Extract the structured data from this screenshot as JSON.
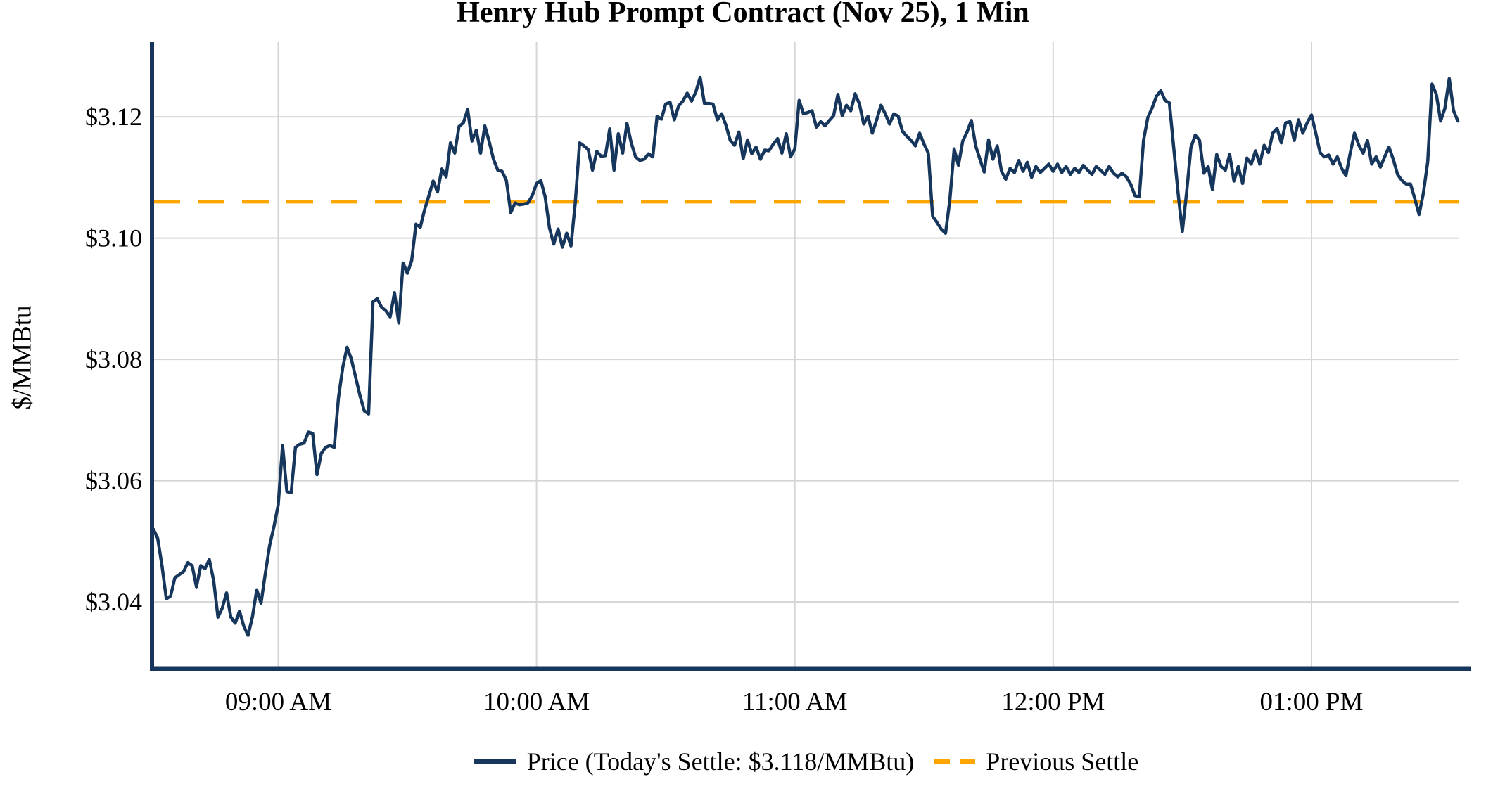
{
  "title": "Henry Hub Prompt Contract (Nov 25), 1 Min",
  "y_axis": {
    "label": "$/MMBtu",
    "ticks": [
      {
        "value": 3.04,
        "label": "$3.04"
      },
      {
        "value": 3.06,
        "label": "$3.06"
      },
      {
        "value": 3.08,
        "label": "$3.08"
      },
      {
        "value": 3.1,
        "label": "$3.10"
      },
      {
        "value": 3.12,
        "label": "$3.12"
      }
    ]
  },
  "x_axis": {
    "ticks": [
      {
        "minute": 29,
        "label": "09:00 AM"
      },
      {
        "minute": 89,
        "label": "10:00 AM"
      },
      {
        "minute": 149,
        "label": "11:00 AM"
      },
      {
        "minute": 209,
        "label": "12:00 PM"
      },
      {
        "minute": 269,
        "label": "01:00 PM"
      }
    ]
  },
  "legend": {
    "price_label": "Price (Today's Settle: $3.118/MMBtu)",
    "previous_settle_label": "Previous Settle"
  },
  "colors": {
    "price_line": "#16365C",
    "previous_settle": "#FFA500",
    "gridline": "#D5D5D5",
    "axis": "#16365C",
    "text": "#000000",
    "background": "#FFFFFF"
  },
  "chart_data": {
    "type": "line",
    "title": "Henry Hub Prompt Contract (Nov 25), 1 Min",
    "xlabel": "",
    "ylabel": "$/MMBtu",
    "ylim": [
      3.029,
      3.1323
    ],
    "grid": true,
    "legend_position": "bottom",
    "start_time": "08:31 AM",
    "end_time": "01:34 PM",
    "interval_minutes": 1,
    "previous_settle": 3.106,
    "todays_settle": 3.118,
    "series": [
      {
        "name": "Price",
        "style": "solid",
        "values": [
          3.052,
          3.0505,
          3.046,
          3.0405,
          3.041,
          3.044,
          3.0445,
          3.045,
          3.0465,
          3.046,
          3.0425,
          3.046,
          3.0455,
          3.047,
          3.0435,
          3.0375,
          3.039,
          3.0415,
          3.0375,
          3.0365,
          3.0385,
          3.036,
          3.0345,
          3.0375,
          3.042,
          3.0398,
          3.0447,
          3.0493,
          3.0524,
          3.056,
          3.0658,
          3.0582,
          3.058,
          3.0655,
          3.066,
          3.0662,
          3.068,
          3.0678,
          3.061,
          3.0645,
          3.0655,
          3.0658,
          3.0655,
          3.0737,
          3.0787,
          3.082,
          3.08,
          3.077,
          3.074,
          3.0715,
          3.071,
          3.0895,
          3.09,
          3.0886,
          3.088,
          3.087,
          3.091,
          3.086,
          3.0959,
          3.0942,
          3.0963,
          3.1023,
          3.1018,
          3.1047,
          3.107,
          3.1094,
          3.1076,
          3.1114,
          3.1101,
          3.1157,
          3.114,
          3.1184,
          3.119,
          3.1212,
          3.116,
          3.1178,
          3.114,
          3.1185,
          3.1159,
          3.113,
          3.1112,
          3.111,
          3.1095,
          3.1042,
          3.1058,
          3.1055,
          3.1056,
          3.1058,
          3.107,
          3.109,
          3.1095,
          3.1068,
          3.1017,
          3.099,
          3.1015,
          3.0985,
          3.1008,
          3.0987,
          3.1058,
          3.1157,
          3.1152,
          3.1146,
          3.1112,
          3.1143,
          3.1135,
          3.1136,
          3.118,
          3.1112,
          3.1172,
          3.114,
          3.1189,
          3.1157,
          3.1134,
          3.1128,
          3.113,
          3.1139,
          3.1134,
          3.1201,
          3.1196,
          3.1221,
          3.1224,
          3.1195,
          3.1218,
          3.1226,
          3.1239,
          3.1226,
          3.1241,
          3.1265,
          3.1222,
          3.1222,
          3.1221,
          3.1195,
          3.1205,
          3.1186,
          3.1161,
          3.1153,
          3.1175,
          3.1131,
          3.1162,
          3.1139,
          3.115,
          3.113,
          3.1145,
          3.1144,
          3.1155,
          3.1164,
          3.114,
          3.1172,
          3.1134,
          3.1147,
          3.1227,
          3.1205,
          3.1207,
          3.121,
          3.1183,
          3.1192,
          3.1185,
          3.1194,
          3.1202,
          3.1237,
          3.1202,
          3.1219,
          3.121,
          3.1238,
          3.1221,
          3.1188,
          3.1201,
          3.1173,
          3.1195,
          3.1219,
          3.1205,
          3.1188,
          3.1205,
          3.1201,
          3.1176,
          3.1168,
          3.1161,
          3.1152,
          3.1173,
          3.1155,
          3.114,
          3.1036,
          3.1026,
          3.1015,
          3.1008,
          3.1063,
          3.1147,
          3.112,
          3.116,
          3.1175,
          3.1194,
          3.1152,
          3.113,
          3.1109,
          3.1162,
          3.113,
          3.1152,
          3.111,
          3.1097,
          3.1115,
          3.1108,
          3.1128,
          3.111,
          3.1125,
          3.11,
          3.1118,
          3.1108,
          3.1115,
          3.1122,
          3.111,
          3.1122,
          3.1108,
          3.1118,
          3.1105,
          3.1115,
          3.1108,
          3.112,
          3.1112,
          3.1105,
          3.1118,
          3.1112,
          3.1105,
          3.1118,
          3.1107,
          3.1101,
          3.1107,
          3.1101,
          3.1089,
          3.107,
          3.1068,
          3.1161,
          3.1199,
          3.1215,
          3.1234,
          3.1243,
          3.1227,
          3.1223,
          3.1149,
          3.1075,
          3.1011,
          3.1075,
          3.1149,
          3.117,
          3.1161,
          3.1107,
          3.1118,
          3.108,
          3.1138,
          3.1118,
          3.1112,
          3.1138,
          3.1094,
          3.1118,
          3.109,
          3.1132,
          3.1122,
          3.1144,
          3.1122,
          3.1153,
          3.1141,
          3.1173,
          3.1181,
          3.1157,
          3.119,
          3.1192,
          3.1161,
          3.1195,
          3.1173,
          3.119,
          3.1203,
          3.1173,
          3.1141,
          3.1134,
          3.1137,
          3.1122,
          3.1134,
          3.1115,
          3.1103,
          3.114,
          3.1173,
          3.1153,
          3.114,
          3.1161,
          3.1122,
          3.1134,
          3.1117,
          3.1134,
          3.115,
          3.113,
          3.1105,
          3.1095,
          3.1089,
          3.1089,
          3.1065,
          3.1039,
          3.1074,
          3.1126,
          3.1254,
          3.1237,
          3.1193,
          3.1214,
          3.1263,
          3.121,
          3.1193
        ]
      },
      {
        "name": "Previous Settle",
        "style": "dashed",
        "value": 3.106
      }
    ]
  }
}
